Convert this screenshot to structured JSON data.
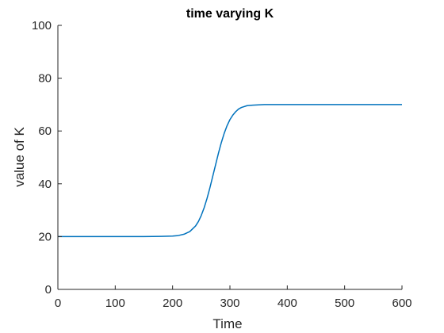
{
  "chart_data": {
    "type": "line",
    "title": "time varying K",
    "xlabel": "Time",
    "ylabel": "value of K",
    "xlim": [
      0,
      600
    ],
    "ylim": [
      0,
      100
    ],
    "xticks": [
      0,
      100,
      200,
      300,
      400,
      500,
      600
    ],
    "yticks": [
      0,
      20,
      40,
      60,
      80,
      100
    ],
    "xtick_labels": [
      "0",
      "100",
      "200",
      "300",
      "400",
      "500",
      "600"
    ],
    "ytick_labels": [
      "0",
      "20",
      "40",
      "60",
      "80",
      "100"
    ],
    "grid": false,
    "series": [
      {
        "color": "#0072BD",
        "x": [
          0,
          100,
          150,
          180,
          200,
          210,
          220,
          230,
          240,
          245,
          250,
          255,
          260,
          265,
          270,
          275,
          280,
          285,
          290,
          295,
          300,
          305,
          310,
          315,
          320,
          330,
          340,
          350,
          360,
          380,
          400,
          450,
          500,
          550,
          600
        ],
        "y": [
          20,
          20,
          20,
          20.1,
          20.2,
          20.4,
          20.9,
          21.9,
          24.0,
          25.7,
          28.0,
          30.9,
          34.4,
          38.4,
          42.8,
          47.2,
          51.6,
          55.6,
          59.1,
          62.0,
          64.3,
          66.0,
          67.3,
          68.3,
          68.9,
          69.6,
          69.8,
          69.9,
          70,
          70,
          70,
          70,
          70,
          70,
          70
        ]
      }
    ]
  }
}
